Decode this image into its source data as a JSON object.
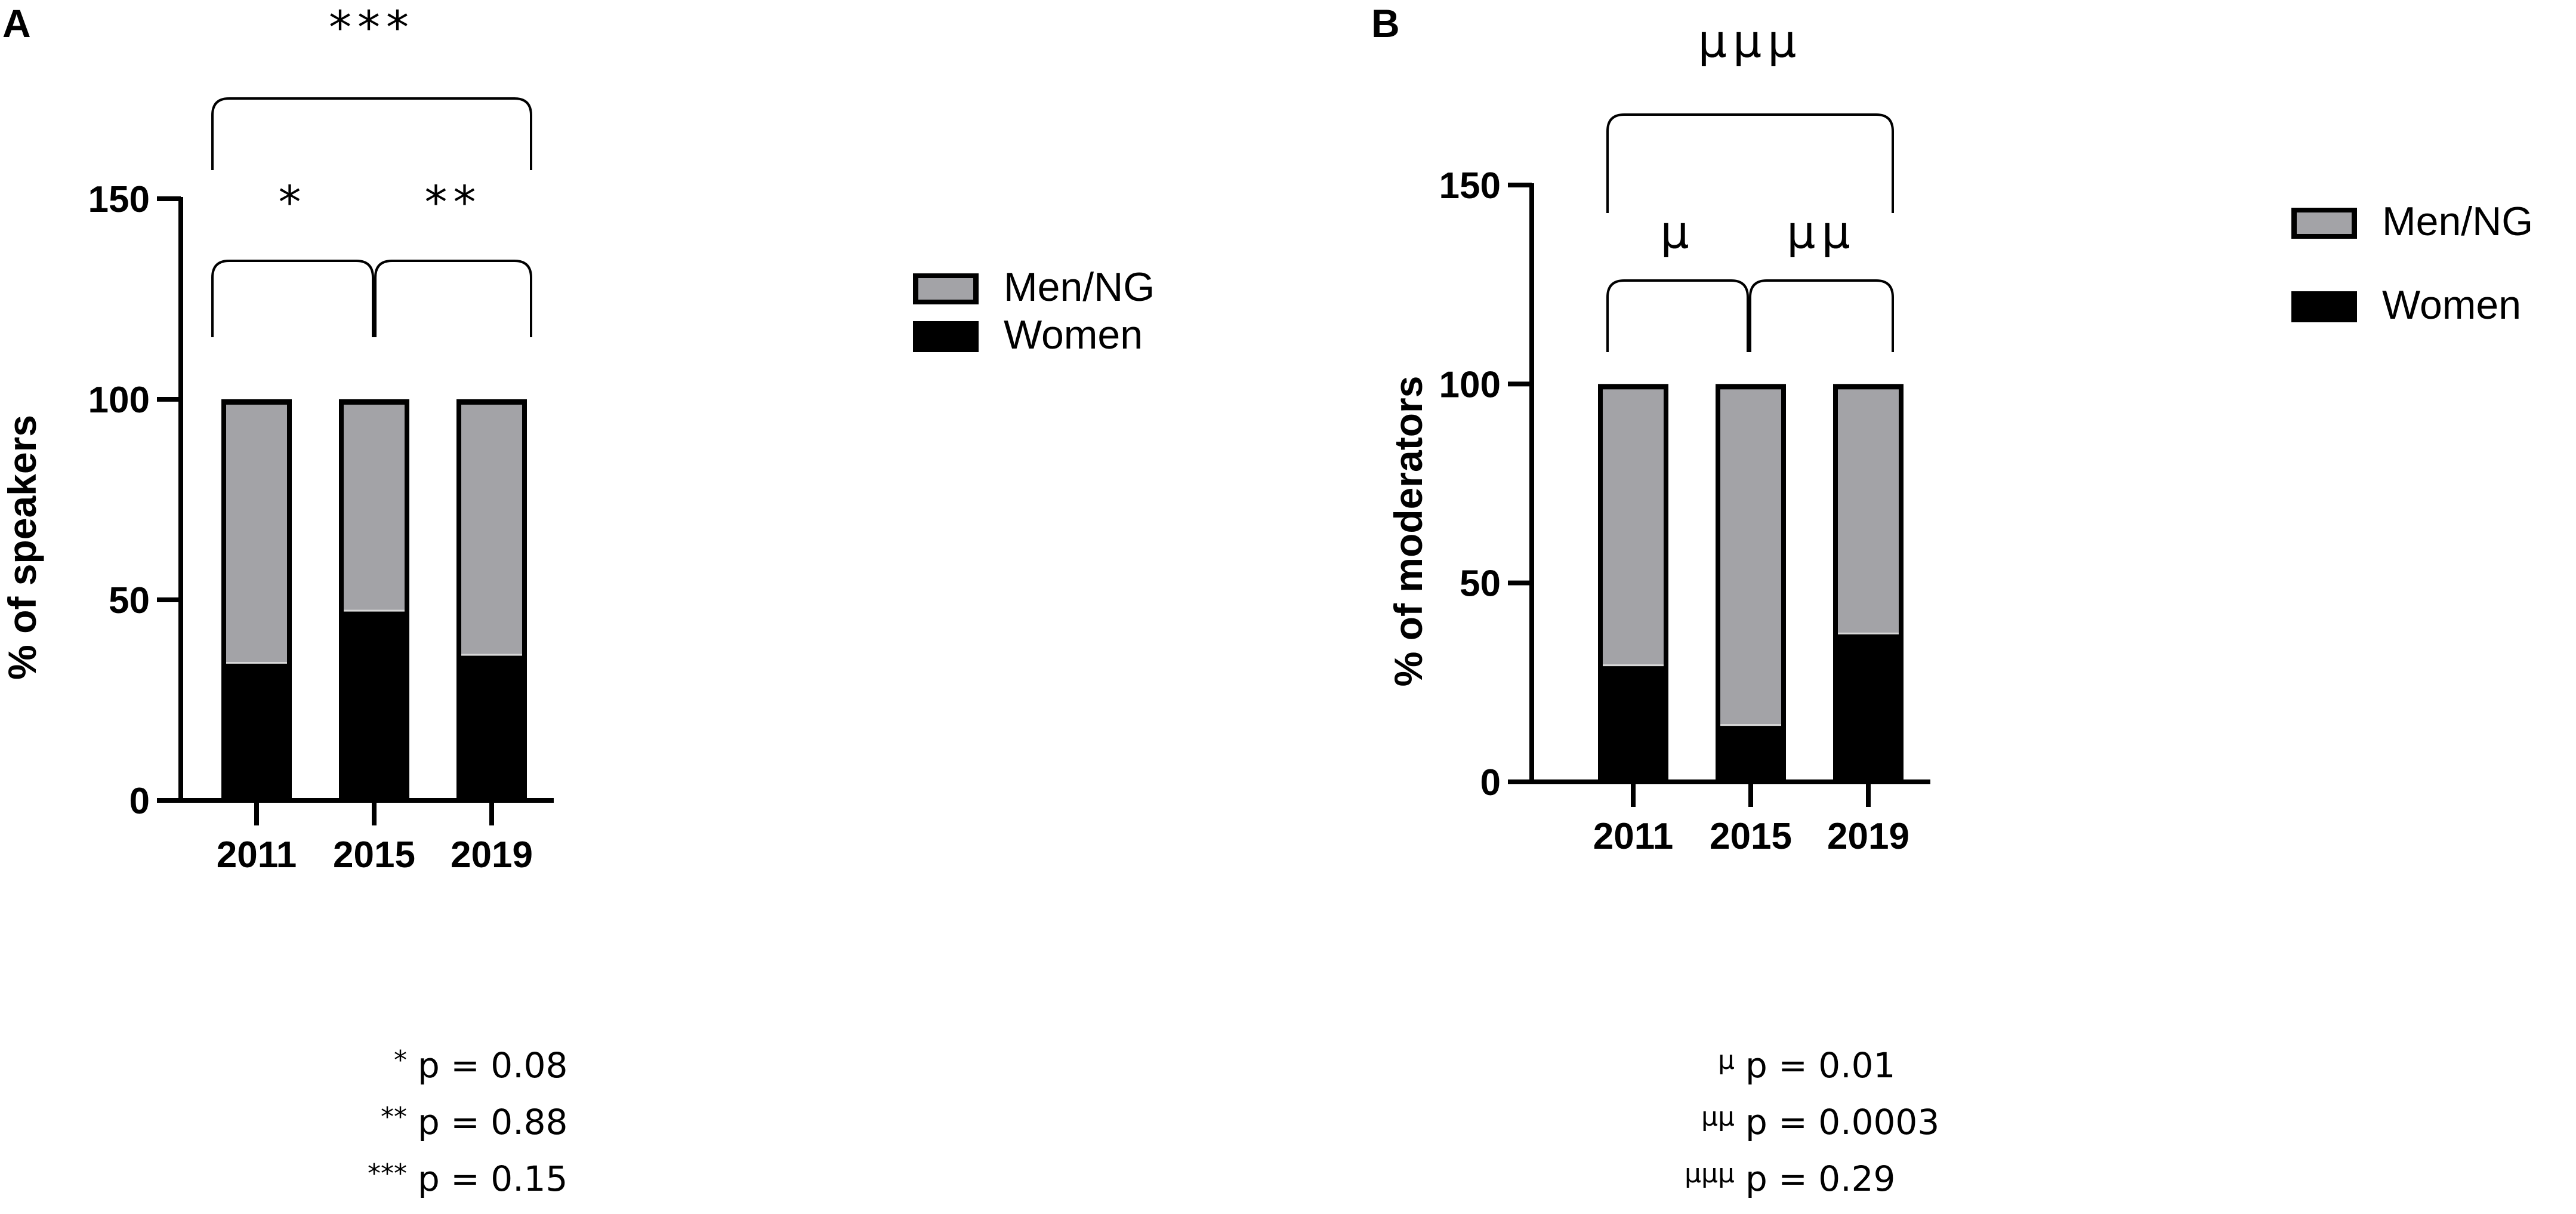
{
  "colors": {
    "women": "#000000",
    "men_ng": "#a3a3a7",
    "axis": "#000000"
  },
  "legend": {
    "men_ng_label": "Men/NG",
    "women_label": "Women"
  },
  "chart_data": [
    {
      "type": "bar",
      "stacked": true,
      "panel": "A",
      "ylabel": "% of speakers",
      "xlabel": "",
      "ylim": [
        0,
        150
      ],
      "yticks": [
        0,
        50,
        100,
        150
      ],
      "categories": [
        "2011",
        "2015",
        "2019"
      ],
      "series": [
        {
          "name": "Women",
          "values": [
            34,
            47,
            36
          ]
        },
        {
          "name": "Men/NG",
          "values": [
            66,
            53,
            64
          ]
        }
      ],
      "significance": [
        {
          "from": "2011",
          "to": "2015",
          "label": "*"
        },
        {
          "from": "2015",
          "to": "2019",
          "label": "**"
        },
        {
          "from": "2011",
          "to": "2019",
          "label": "***"
        }
      ],
      "footnotes": [
        {
          "symbol": "*",
          "text": "p = 0.08"
        },
        {
          "symbol": "**",
          "text": "p = 0.88"
        },
        {
          "symbol": "***",
          "text": "p = 0.15"
        }
      ]
    },
    {
      "type": "bar",
      "stacked": true,
      "panel": "B",
      "ylabel": "% of moderators",
      "xlabel": "",
      "ylim": [
        0,
        150
      ],
      "yticks": [
        0,
        50,
        100,
        150
      ],
      "categories": [
        "2011",
        "2015",
        "2019"
      ],
      "series": [
        {
          "name": "Women",
          "values": [
            29,
            14,
            37
          ]
        },
        {
          "name": "Men/NG",
          "values": [
            71,
            86,
            63
          ]
        }
      ],
      "significance": [
        {
          "from": "2011",
          "to": "2015",
          "label": "µ"
        },
        {
          "from": "2015",
          "to": "2019",
          "label": "µµ"
        },
        {
          "from": "2011",
          "to": "2019",
          "label": "µµµ"
        }
      ],
      "footnotes": [
        {
          "symbol": "µ",
          "text": "p = 0.01"
        },
        {
          "symbol": "µµ",
          "text": "p = 0.0003"
        },
        {
          "symbol": "µµµ",
          "text": "p = 0.29"
        }
      ]
    }
  ]
}
